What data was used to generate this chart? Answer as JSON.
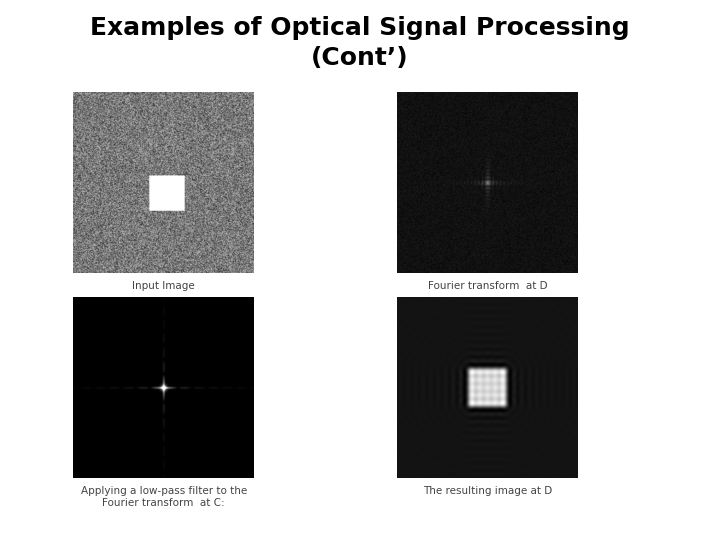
{
  "title_line1": "Examples of Optical Signal Processing",
  "title_line2": "(Cont’)",
  "title_fontsize": 18,
  "title_fontweight": "bold",
  "bg_color": "#ffffff",
  "captions": [
    "Input Image",
    "Fourier transform  at D",
    "Applying a low-pass filter to the\nFourier transform  at C:",
    "The resulting image at D"
  ],
  "caption_fontsize": 7.5,
  "image_size": 256
}
